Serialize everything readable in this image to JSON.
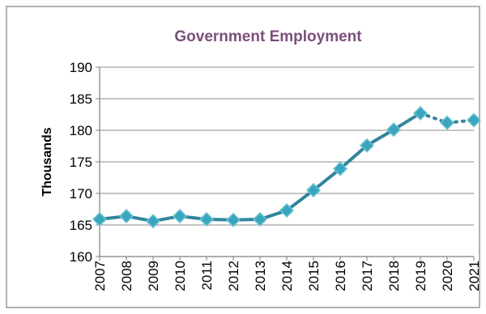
{
  "chart_data": {
    "type": "line",
    "title": "Government Employment",
    "xlabel": "",
    "ylabel": "Thousands",
    "ylim": [
      160,
      190
    ],
    "yticks": [
      160,
      165,
      170,
      175,
      180,
      185,
      190
    ],
    "categories": [
      "2007",
      "2008",
      "2009",
      "2010",
      "2011",
      "2012",
      "2013",
      "2014",
      "2015",
      "2016",
      "2017",
      "2018",
      "2019",
      "2020",
      "2021"
    ],
    "series": [
      {
        "values": [
          165.9,
          166.4,
          165.6,
          166.4,
          165.9,
          165.8,
          165.9,
          167.3,
          170.5,
          173.9,
          177.6,
          180.1,
          182.7,
          181.2,
          181.6
        ],
        "solid_through_index": 12,
        "color": "#31859c",
        "marker": "diamond"
      }
    ],
    "grid": true,
    "legend": "none"
  }
}
